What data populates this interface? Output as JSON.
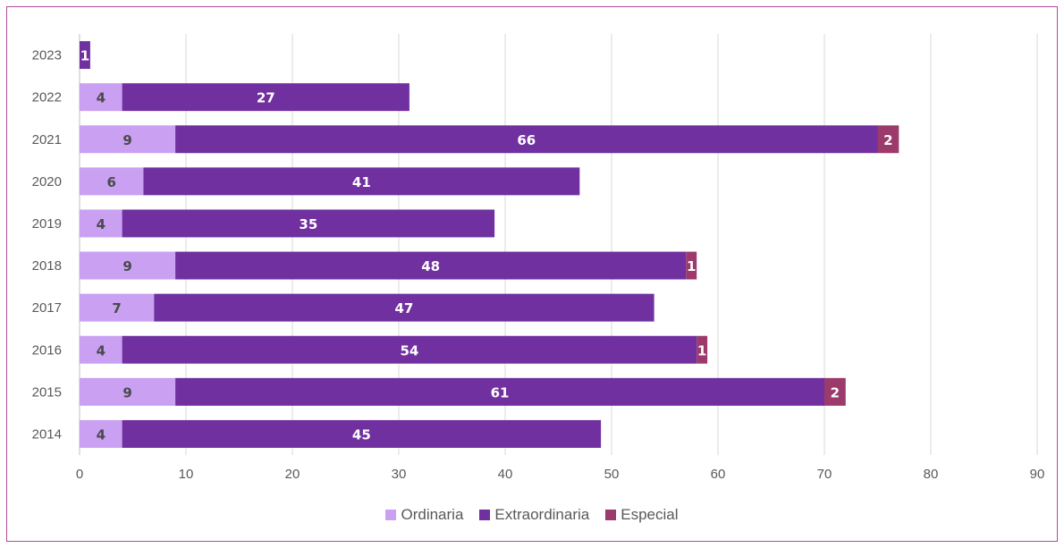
{
  "chart_data": {
    "type": "bar",
    "orientation": "horizontal",
    "stacked": true,
    "categories": [
      "2014",
      "2015",
      "2016",
      "2017",
      "2018",
      "2019",
      "2020",
      "2021",
      "2022",
      "2023"
    ],
    "series": [
      {
        "name": "Ordinaria",
        "color": "#c9a0f2",
        "label_color": "#4a4a4a",
        "values": [
          4,
          9,
          4,
          7,
          9,
          4,
          6,
          9,
          4,
          0
        ]
      },
      {
        "name": "Extraordinaria",
        "color": "#7030a0",
        "label_color": "#ffffff",
        "values": [
          45,
          61,
          54,
          47,
          48,
          35,
          41,
          66,
          27,
          1
        ]
      },
      {
        "name": "Especial",
        "color": "#9b3a6b",
        "label_color": "#ffffff",
        "values": [
          0,
          2,
          1,
          0,
          1,
          0,
          0,
          2,
          0,
          0
        ]
      }
    ],
    "xlim": [
      0,
      90
    ],
    "xticks": [
      "0",
      "10",
      "20",
      "30",
      "40",
      "50",
      "60",
      "70",
      "80",
      "90"
    ],
    "grid": true,
    "legend_position": "bottom",
    "title": "",
    "xlabel": "",
    "ylabel": ""
  }
}
